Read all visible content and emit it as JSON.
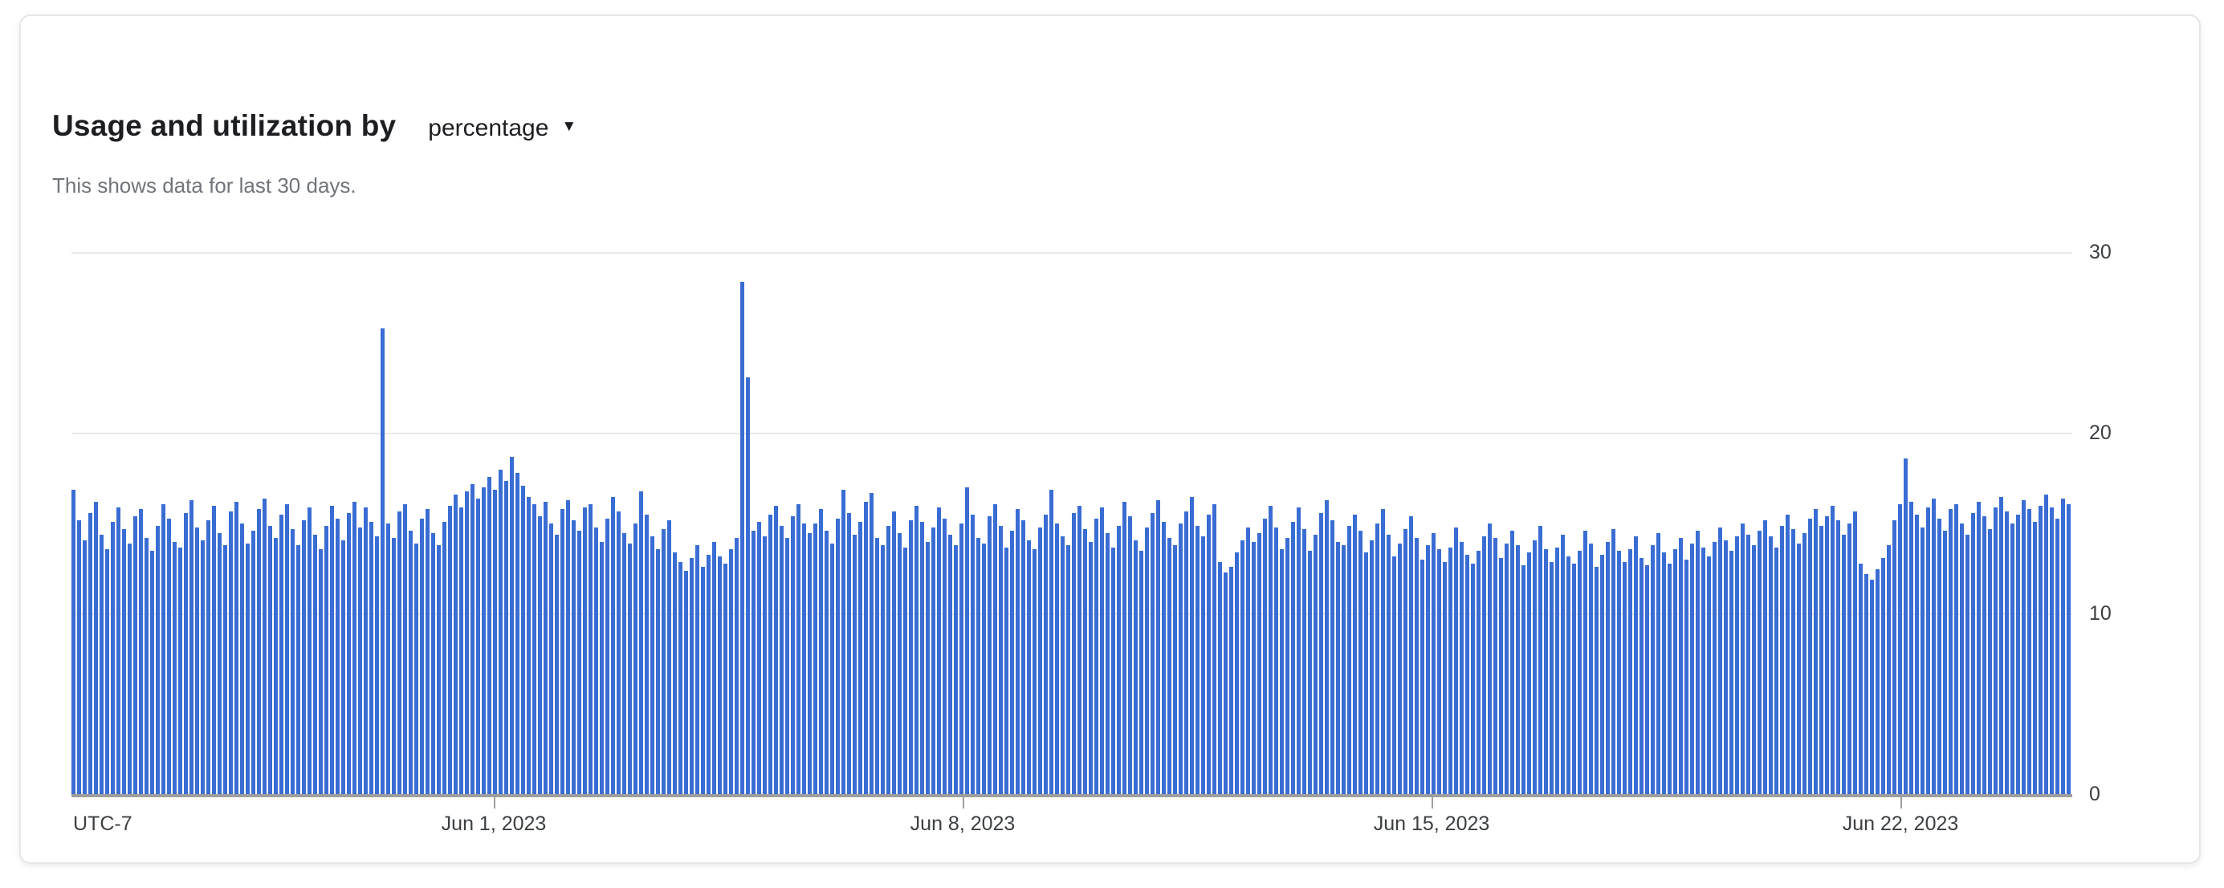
{
  "card": {
    "title": "Usage and utilization by",
    "dropdown": {
      "label": "percentage",
      "icon": "caret-down"
    },
    "subtitle": "This shows data for last 30 days."
  },
  "chart_data": {
    "type": "bar",
    "title": "Usage and utilization by percentage",
    "xlabel": "",
    "ylabel": "",
    "unit": "percent",
    "grid": true,
    "legend": "none",
    "bar_color": "#3a6dd3",
    "gridline_color": "#e9e9e9",
    "axis_line_color": "#9e9e9e",
    "y_axis": {
      "min": 0,
      "max": 30,
      "ticks": [
        0,
        10,
        20,
        30
      ],
      "side": "right"
    },
    "x_axis": {
      "timezone_label": "UTC-7",
      "tick_labels": [
        "Jun 1, 2023",
        "Jun 8, 2023",
        "Jun 15, 2023",
        "Jun 22, 2023"
      ],
      "tick_positions": [
        0.2111,
        0.4454,
        0.6798,
        0.9141
      ],
      "range_days": 30
    },
    "notable_points": [
      {
        "label": "spike-1",
        "value": 25.8
      },
      {
        "label": "spike-2",
        "value": 28.4
      },
      {
        "label": "spike-3",
        "value": 18.6
      }
    ],
    "values": [
      16.9,
      15.2,
      14.1,
      15.6,
      16.2,
      14.4,
      13.6,
      15.1,
      15.9,
      14.7,
      13.9,
      15.4,
      15.8,
      14.2,
      13.5,
      14.9,
      16.1,
      15.3,
      14.0,
      13.7,
      15.6,
      16.3,
      14.8,
      14.1,
      15.2,
      16.0,
      14.5,
      13.8,
      15.7,
      16.2,
      15.0,
      13.9,
      14.6,
      15.8,
      16.4,
      14.9,
      14.2,
      15.5,
      16.1,
      14.7,
      13.8,
      15.2,
      15.9,
      14.4,
      13.6,
      14.9,
      16.0,
      15.3,
      14.1,
      15.6,
      16.2,
      14.8,
      15.9,
      15.1,
      14.3,
      25.8,
      15.0,
      14.2,
      15.7,
      16.1,
      14.6,
      13.9,
      15.3,
      15.8,
      14.5,
      13.8,
      15.1,
      16.0,
      16.6,
      15.9,
      16.8,
      17.2,
      16.4,
      17.0,
      17.6,
      16.9,
      18.0,
      17.4,
      18.7,
      17.8,
      17.1,
      16.5,
      16.1,
      15.4,
      16.2,
      15.0,
      14.4,
      15.8,
      16.3,
      15.2,
      14.6,
      15.9,
      16.1,
      14.8,
      14.0,
      15.3,
      16.5,
      15.7,
      14.5,
      13.9,
      15.0,
      16.8,
      15.5,
      14.3,
      13.6,
      14.7,
      15.2,
      13.4,
      12.9,
      12.4,
      13.1,
      13.8,
      12.6,
      13.3,
      14.0,
      13.2,
      12.8,
      13.6,
      14.2,
      28.4,
      23.1,
      14.6,
      15.1,
      14.3,
      15.5,
      16.0,
      14.9,
      14.2,
      15.4,
      16.1,
      15.0,
      14.5,
      15.0,
      15.8,
      14.6,
      13.9,
      15.3,
      16.9,
      15.6,
      14.4,
      15.1,
      16.2,
      16.7,
      14.2,
      13.8,
      14.9,
      15.7,
      14.5,
      13.7,
      15.2,
      16.0,
      15.1,
      14.0,
      14.8,
      15.9,
      15.3,
      14.4,
      13.8,
      15.0,
      17.0,
      15.5,
      14.2,
      13.9,
      15.4,
      16.1,
      14.9,
      13.7,
      14.6,
      15.8,
      15.2,
      14.1,
      13.6,
      14.8,
      15.5,
      16.9,
      15.0,
      14.3,
      13.8,
      15.6,
      16.0,
      14.7,
      14.0,
      15.3,
      15.9,
      14.5,
      13.7,
      14.9,
      16.2,
      15.4,
      14.1,
      13.5,
      14.8,
      15.6,
      16.3,
      15.1,
      14.2,
      13.8,
      15.0,
      15.7,
      16.5,
      14.9,
      14.3,
      15.5,
      16.1,
      12.9,
      12.3,
      12.6,
      13.4,
      14.1,
      14.8,
      14.0,
      14.5,
      15.3,
      16.0,
      14.8,
      13.6,
      14.2,
      15.1,
      15.9,
      14.7,
      13.5,
      14.4,
      15.6,
      16.3,
      15.2,
      14.0,
      13.8,
      14.9,
      15.5,
      14.6,
      13.4,
      14.1,
      15.0,
      15.8,
      14.4,
      13.2,
      13.9,
      14.7,
      15.4,
      14.2,
      13.0,
      13.8,
      14.5,
      13.6,
      12.9,
      13.7,
      14.8,
      14.0,
      13.3,
      12.8,
      13.5,
      14.3,
      15.0,
      14.2,
      13.1,
      13.9,
      14.6,
      13.8,
      12.7,
      13.4,
      14.1,
      14.9,
      13.6,
      12.9,
      13.7,
      14.4,
      13.2,
      12.8,
      13.5,
      14.6,
      13.9,
      12.6,
      13.3,
      14.0,
      14.7,
      13.5,
      12.9,
      13.6,
      14.3,
      13.1,
      12.7,
      13.8,
      14.5,
      13.4,
      12.8,
      13.6,
      14.2,
      13.0,
      13.9,
      14.6,
      13.7,
      13.2,
      14.0,
      14.8,
      14.1,
      13.5,
      14.3,
      15.0,
      14.4,
      13.8,
      14.6,
      15.2,
      14.3,
      13.7,
      14.9,
      15.5,
      14.7,
      13.9,
      14.5,
      15.3,
      15.8,
      14.9,
      15.4,
      16.0,
      15.2,
      14.4,
      15.0,
      15.7,
      12.8,
      12.2,
      11.9,
      12.5,
      13.1,
      13.8,
      15.2,
      16.1,
      18.6,
      16.2,
      15.5,
      14.8,
      15.9,
      16.4,
      15.3,
      14.6,
      15.8,
      16.1,
      15.0,
      14.4,
      15.6,
      16.2,
      15.4,
      14.7,
      15.9,
      16.5,
      15.7,
      15.0,
      15.5,
      16.3,
      15.8,
      15.1,
      16.0,
      16.6,
      15.9,
      15.3,
      16.4,
      16.1
    ]
  }
}
